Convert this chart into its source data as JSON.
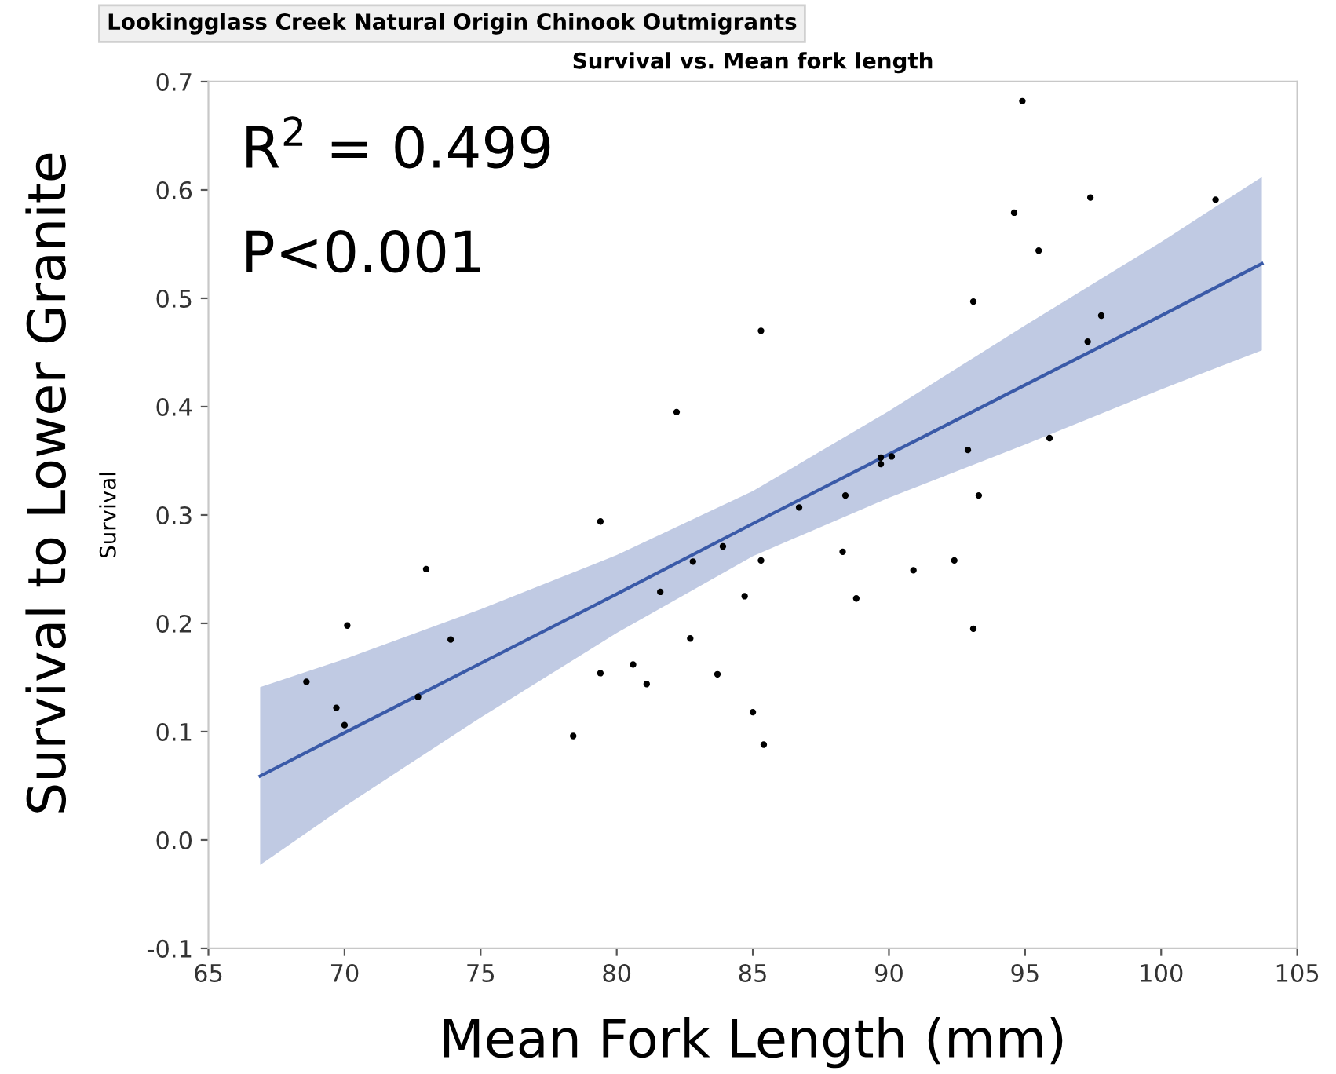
{
  "chart_data": {
    "type": "scatter",
    "title": "Survival vs. Mean fork length",
    "subtitle": "Lookingglass Creek Natural Origin Chinook Outmigrants",
    "xlabel": "Mean Fork Length (mm)",
    "ylabel": "Survival",
    "annotations": [
      "R$^{2}$ = 0.499",
      "P<0.001",
      "Survival to Lower Granite"
    ],
    "xlim": [
      65,
      105
    ],
    "xticks": [
      65,
      70,
      75,
      80,
      85,
      90,
      95,
      100,
      105
    ],
    "ylim": [
      -0.1,
      0.7
    ],
    "yticks": [
      -0.1,
      {
        "value": 0,
        "label": "0.0"
      },
      0.1,
      0.2,
      0.3,
      0.4,
      0.5,
      0.6,
      0.7
    ],
    "grid": false,
    "legend": false,
    "series": [
      {
        "color": "#000000",
        "marker": "circle",
        "x": [
          68.6,
          69.7,
          70.0,
          70.1,
          72.7,
          73.0,
          73.9,
          78.4,
          79.4,
          79.4,
          80.6,
          81.1,
          81.6,
          82.2,
          82.7,
          82.8,
          83.7,
          83.9,
          84.7,
          85.0,
          85.4,
          85.3,
          85.3,
          86.7,
          88.3,
          88.4,
          88.8,
          89.7,
          89.7,
          90.1,
          90.9,
          92.4,
          92.9,
          93.1,
          93.1,
          93.3,
          94.6,
          94.9,
          95.5,
          95.9,
          97.3,
          97.4,
          97.8,
          102.0
        ],
        "values": [
          0.146,
          0.122,
          0.106,
          0.198,
          0.132,
          0.25,
          0.185,
          0.096,
          0.294,
          0.154,
          0.162,
          0.144,
          0.229,
          0.395,
          0.186,
          0.257,
          0.153,
          0.271,
          0.225,
          0.118,
          0.088,
          0.258,
          0.47,
          0.307,
          0.266,
          0.318,
          0.223,
          0.353,
          0.347,
          0.354,
          0.249,
          0.258,
          0.36,
          0.195,
          0.497,
          0.318,
          0.579,
          0.682,
          0.544,
          0.371,
          0.46,
          0.593,
          0.484,
          0.591
        ]
      },
      {
        "type": "line",
        "color": "#3a5aa8",
        "marker": "none",
        "x": [
          66.9,
          70,
          75,
          80,
          85,
          90,
          95,
          100,
          103.7
        ],
        "values": [
          0.059,
          0.099,
          0.163,
          0.227,
          0.292,
          0.356,
          0.42,
          0.484,
          0.532
        ],
        "lower": [
          -0.023,
          0.031,
          0.113,
          0.191,
          0.262,
          0.316,
          0.365,
          0.416,
          0.452
        ],
        "upper": [
          0.141,
          0.167,
          0.213,
          0.263,
          0.322,
          0.396,
          0.475,
          0.552,
          0.612
        ]
      }
    ]
  }
}
